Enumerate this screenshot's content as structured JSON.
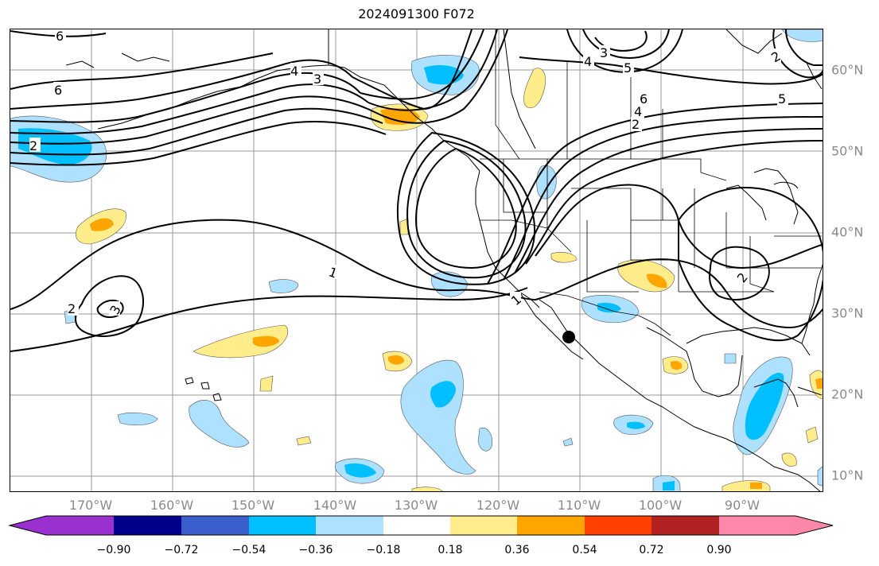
{
  "title": "2024091300 F072",
  "map": {
    "lon_labels": [
      "170°W",
      "160°W",
      "150°W",
      "140°W",
      "130°W",
      "120°W",
      "110°W",
      "100°W",
      "90°W"
    ],
    "lat_labels": [
      "60°N",
      "50°N",
      "40°N",
      "30°N",
      "20°N",
      "10°N"
    ],
    "contour_labels": {
      "top_left_6": "6",
      "mid_left_6": "6",
      "label_4_nw": "4",
      "label_3_nw": "3",
      "label_2_w": "2",
      "label_1_center": "1",
      "label_1_baja": "1",
      "label_2_sw": "2",
      "label_3_sw": "3",
      "label_3_ne": "3",
      "label_4_ne": "4",
      "label_5_ne": "5",
      "label_5_e": "5",
      "label_6_e": "6",
      "label_4_e": "4",
      "label_2_e": "2",
      "label_2_far_ne": "2",
      "label_2_gulf": "2"
    },
    "marker": "station-point"
  },
  "colorbar": {
    "colors": [
      "#9b30d0",
      "#00008b",
      "#3a5fcd",
      "#00bfff",
      "#aee0ff",
      "#ffffff",
      "#ffec8b",
      "#ffa500",
      "#ff4000",
      "#b22222",
      "#ff88aa"
    ],
    "tick_labels": [
      "−0.90",
      "−0.72",
      "−0.54",
      "−0.36",
      "−0.18",
      "0.18",
      "0.36",
      "0.54",
      "0.72",
      "0.90"
    ]
  }
}
